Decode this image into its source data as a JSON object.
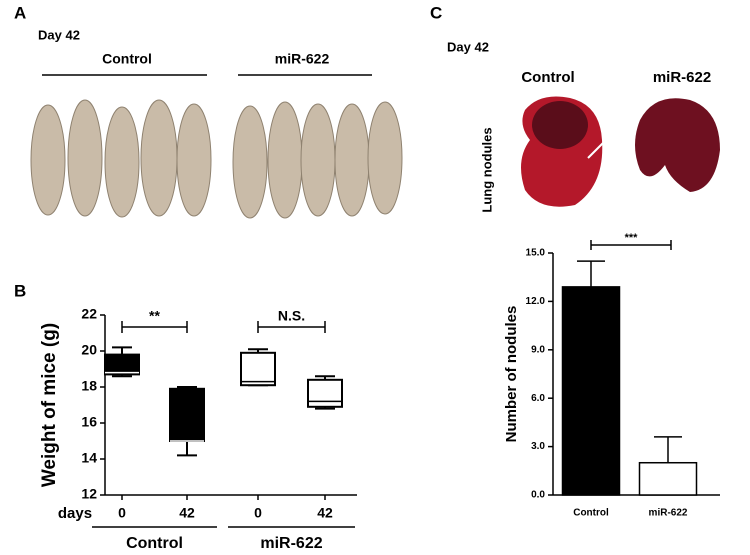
{
  "panels": {
    "A": {
      "label": "A",
      "day": "Day 42",
      "groups": [
        "Control",
        "miR-622"
      ]
    },
    "B": {
      "label": "B"
    },
    "C": {
      "label": "C",
      "day": "Day 42",
      "groups": [
        "Control",
        "miR-622"
      ],
      "side_label": "Lung nodules"
    }
  },
  "chart_data": [
    {
      "type": "box",
      "ylabel": "Weight of mice (g)",
      "xlabel": "days",
      "categories": [
        "0",
        "42",
        "0",
        "42"
      ],
      "groups": [
        "Control",
        "miR-622"
      ],
      "boxes": [
        {
          "min": 18.6,
          "q1": 18.7,
          "median": 18.8,
          "q3": 19.8,
          "max": 20.2,
          "color": "#000000"
        },
        {
          "min": 14.2,
          "q1": 15.0,
          "median": 15.0,
          "q3": 17.9,
          "max": 18.0,
          "color": "#000000"
        },
        {
          "min": 18.1,
          "q1": 18.1,
          "median": 18.3,
          "q3": 19.9,
          "max": 20.1,
          "color": "#ffffff"
        },
        {
          "min": 16.8,
          "q1": 16.9,
          "median": 17.2,
          "q3": 18.4,
          "max": 18.6,
          "color": "#ffffff"
        }
      ],
      "annotations": [
        "**",
        "N.S."
      ],
      "ylim": [
        12,
        22
      ],
      "yticks": [
        12,
        14,
        16,
        18,
        20,
        22
      ]
    },
    {
      "type": "bar",
      "ylabel": "Number of nodules",
      "categories": [
        "Control",
        "miR-622"
      ],
      "values": [
        12.9,
        2.0
      ],
      "errors": [
        1.6,
        1.6
      ],
      "colors": [
        "#000000",
        "#ffffff"
      ],
      "annotations": [
        "***"
      ],
      "ylim": [
        0,
        15
      ],
      "yticks": [
        {
          "value": 0,
          "label": "0.0"
        },
        {
          "value": 3,
          "label": "3.0"
        },
        {
          "value": 6,
          "label": "6.0"
        },
        {
          "value": 9,
          "label": "9.0"
        },
        {
          "value": 12,
          "label": "12.0"
        },
        {
          "value": 15,
          "label": "15.0"
        }
      ]
    }
  ]
}
